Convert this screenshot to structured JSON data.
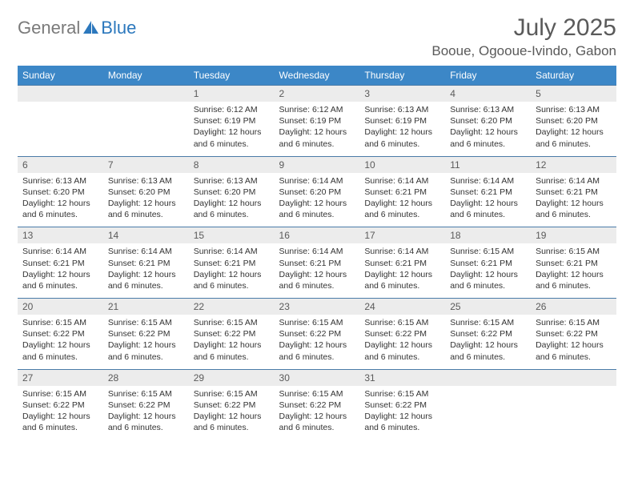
{
  "logo": {
    "word1": "General",
    "word2": "Blue"
  },
  "title": "July 2025",
  "location": "Booue, Ogooue-Ivindo, Gabon",
  "colors": {
    "header_bg": "#3c87c7",
    "header_text": "#ffffff",
    "daynum_bg": "#ececec",
    "cell_border": "#4a7ba8",
    "title_color": "#5a5a5a",
    "body_text": "#333333",
    "logo_gray": "#7a7a7a",
    "logo_blue": "#2c78bd",
    "page_bg": "#ffffff"
  },
  "typography": {
    "title_fontsize": 30,
    "location_fontsize": 17,
    "logo_fontsize": 22,
    "day_header_fontsize": 12,
    "daynum_fontsize": 12,
    "details_fontsize": 10.5
  },
  "day_headers": [
    "Sunday",
    "Monday",
    "Tuesday",
    "Wednesday",
    "Thursday",
    "Friday",
    "Saturday"
  ],
  "weeks": [
    [
      null,
      null,
      {
        "n": "1",
        "sunrise": "6:12 AM",
        "sunset": "6:19 PM",
        "daylight": "12 hours and 6 minutes."
      },
      {
        "n": "2",
        "sunrise": "6:12 AM",
        "sunset": "6:19 PM",
        "daylight": "12 hours and 6 minutes."
      },
      {
        "n": "3",
        "sunrise": "6:13 AM",
        "sunset": "6:19 PM",
        "daylight": "12 hours and 6 minutes."
      },
      {
        "n": "4",
        "sunrise": "6:13 AM",
        "sunset": "6:20 PM",
        "daylight": "12 hours and 6 minutes."
      },
      {
        "n": "5",
        "sunrise": "6:13 AM",
        "sunset": "6:20 PM",
        "daylight": "12 hours and 6 minutes."
      }
    ],
    [
      {
        "n": "6",
        "sunrise": "6:13 AM",
        "sunset": "6:20 PM",
        "daylight": "12 hours and 6 minutes."
      },
      {
        "n": "7",
        "sunrise": "6:13 AM",
        "sunset": "6:20 PM",
        "daylight": "12 hours and 6 minutes."
      },
      {
        "n": "8",
        "sunrise": "6:13 AM",
        "sunset": "6:20 PM",
        "daylight": "12 hours and 6 minutes."
      },
      {
        "n": "9",
        "sunrise": "6:14 AM",
        "sunset": "6:20 PM",
        "daylight": "12 hours and 6 minutes."
      },
      {
        "n": "10",
        "sunrise": "6:14 AM",
        "sunset": "6:21 PM",
        "daylight": "12 hours and 6 minutes."
      },
      {
        "n": "11",
        "sunrise": "6:14 AM",
        "sunset": "6:21 PM",
        "daylight": "12 hours and 6 minutes."
      },
      {
        "n": "12",
        "sunrise": "6:14 AM",
        "sunset": "6:21 PM",
        "daylight": "12 hours and 6 minutes."
      }
    ],
    [
      {
        "n": "13",
        "sunrise": "6:14 AM",
        "sunset": "6:21 PM",
        "daylight": "12 hours and 6 minutes."
      },
      {
        "n": "14",
        "sunrise": "6:14 AM",
        "sunset": "6:21 PM",
        "daylight": "12 hours and 6 minutes."
      },
      {
        "n": "15",
        "sunrise": "6:14 AM",
        "sunset": "6:21 PM",
        "daylight": "12 hours and 6 minutes."
      },
      {
        "n": "16",
        "sunrise": "6:14 AM",
        "sunset": "6:21 PM",
        "daylight": "12 hours and 6 minutes."
      },
      {
        "n": "17",
        "sunrise": "6:14 AM",
        "sunset": "6:21 PM",
        "daylight": "12 hours and 6 minutes."
      },
      {
        "n": "18",
        "sunrise": "6:15 AM",
        "sunset": "6:21 PM",
        "daylight": "12 hours and 6 minutes."
      },
      {
        "n": "19",
        "sunrise": "6:15 AM",
        "sunset": "6:21 PM",
        "daylight": "12 hours and 6 minutes."
      }
    ],
    [
      {
        "n": "20",
        "sunrise": "6:15 AM",
        "sunset": "6:22 PM",
        "daylight": "12 hours and 6 minutes."
      },
      {
        "n": "21",
        "sunrise": "6:15 AM",
        "sunset": "6:22 PM",
        "daylight": "12 hours and 6 minutes."
      },
      {
        "n": "22",
        "sunrise": "6:15 AM",
        "sunset": "6:22 PM",
        "daylight": "12 hours and 6 minutes."
      },
      {
        "n": "23",
        "sunrise": "6:15 AM",
        "sunset": "6:22 PM",
        "daylight": "12 hours and 6 minutes."
      },
      {
        "n": "24",
        "sunrise": "6:15 AM",
        "sunset": "6:22 PM",
        "daylight": "12 hours and 6 minutes."
      },
      {
        "n": "25",
        "sunrise": "6:15 AM",
        "sunset": "6:22 PM",
        "daylight": "12 hours and 6 minutes."
      },
      {
        "n": "26",
        "sunrise": "6:15 AM",
        "sunset": "6:22 PM",
        "daylight": "12 hours and 6 minutes."
      }
    ],
    [
      {
        "n": "27",
        "sunrise": "6:15 AM",
        "sunset": "6:22 PM",
        "daylight": "12 hours and 6 minutes."
      },
      {
        "n": "28",
        "sunrise": "6:15 AM",
        "sunset": "6:22 PM",
        "daylight": "12 hours and 6 minutes."
      },
      {
        "n": "29",
        "sunrise": "6:15 AM",
        "sunset": "6:22 PM",
        "daylight": "12 hours and 6 minutes."
      },
      {
        "n": "30",
        "sunrise": "6:15 AM",
        "sunset": "6:22 PM",
        "daylight": "12 hours and 6 minutes."
      },
      {
        "n": "31",
        "sunrise": "6:15 AM",
        "sunset": "6:22 PM",
        "daylight": "12 hours and 6 minutes."
      },
      null,
      null
    ]
  ],
  "labels": {
    "sunrise": "Sunrise:",
    "sunset": "Sunset:",
    "daylight": "Daylight:"
  }
}
